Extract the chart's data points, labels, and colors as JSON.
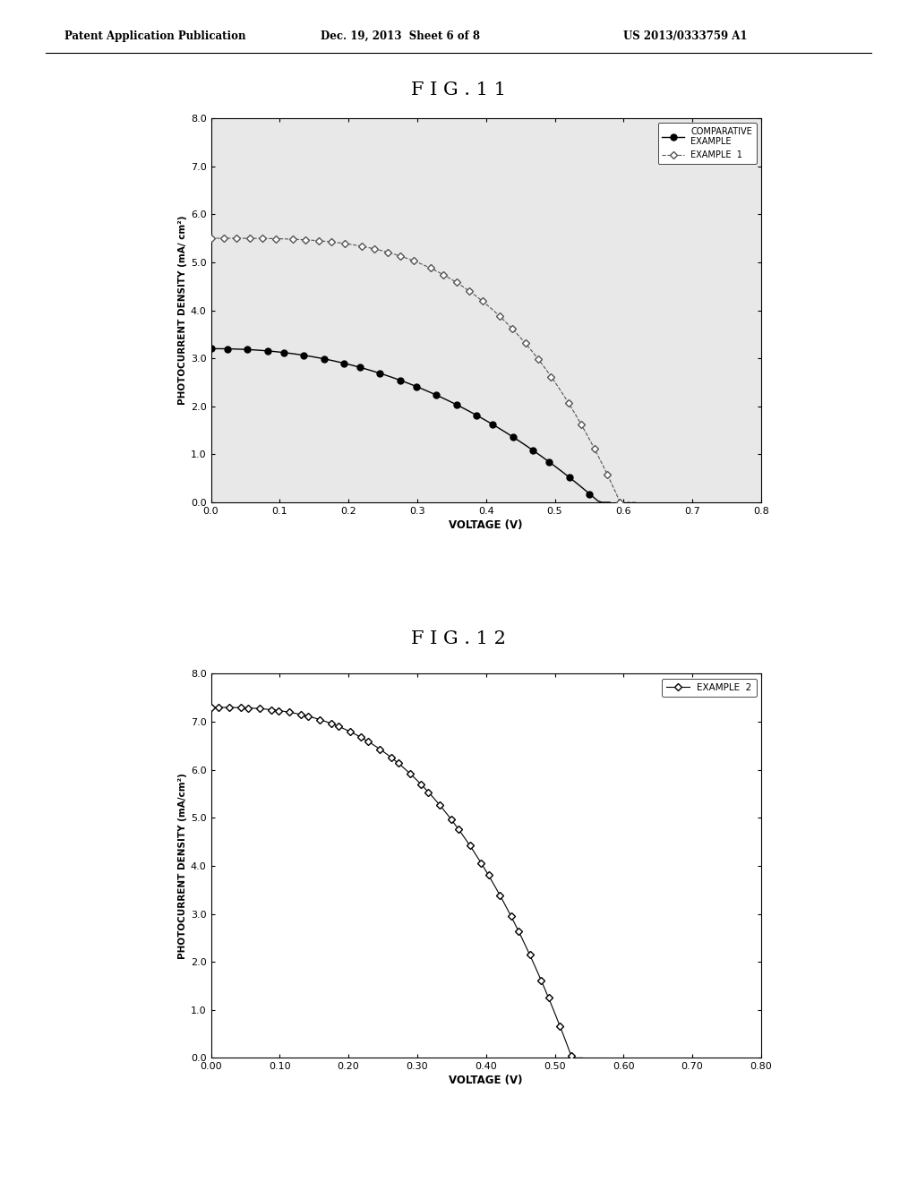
{
  "header_left": "Patent Application Publication",
  "header_center": "Dec. 19, 2013  Sheet 6 of 8",
  "header_right": "US 2013/0333759 A1",
  "fig11_title": "F I G . 1 1",
  "fig12_title": "F I G . 1 2",
  "fig11_ylabel": "PHOTOCURRENT DENSITY (mA/ cm²)",
  "fig11_xlabel": "VOLTAGE (V)",
  "fig12_ylabel": "PHOTOCURRENT DENSITY (mA/cm²)",
  "fig12_xlabel": "VOLTAGE (V)",
  "fig11_xlim": [
    0.0,
    0.8
  ],
  "fig11_ylim": [
    0.0,
    8.0
  ],
  "fig12_xlim": [
    0.0,
    0.8
  ],
  "fig12_ylim": [
    0.0,
    8.0
  ],
  "fig11_xticks": [
    0.0,
    0.1,
    0.2,
    0.3,
    0.4,
    0.5,
    0.6,
    0.7,
    0.8
  ],
  "fig11_yticks": [
    0.0,
    1.0,
    2.0,
    3.0,
    4.0,
    5.0,
    6.0,
    7.0,
    8.0
  ],
  "fig12_xticks": [
    0.0,
    0.1,
    0.2,
    0.3,
    0.4,
    0.5,
    0.6,
    0.7,
    0.8
  ],
  "fig12_yticks": [
    0.0,
    1.0,
    2.0,
    3.0,
    4.0,
    5.0,
    6.0,
    7.0,
    8.0
  ],
  "comparative_label": "COMPARATIVE\nEXAMPLE",
  "example1_label": "EXAMPLE  1",
  "example2_label": "EXAMPLE  2",
  "plot_bg_color": "#e8e8e8",
  "page_bg": "#f0f0f0"
}
